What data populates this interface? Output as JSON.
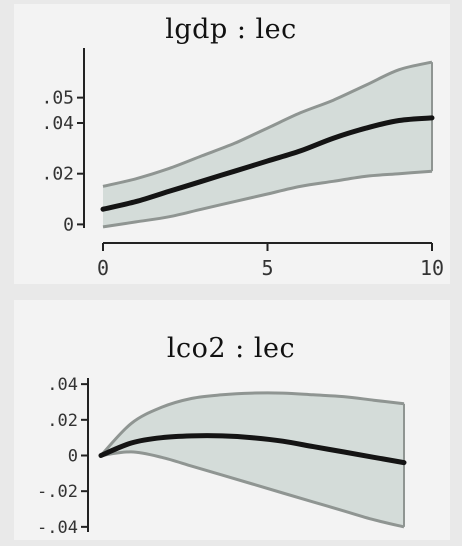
{
  "chart_data": [
    {
      "type": "area",
      "title": "lgdp : lec",
      "xlabel": "",
      "ylabel": "",
      "x": [
        0,
        1,
        2,
        3,
        4,
        5,
        6,
        7,
        8,
        9,
        10
      ],
      "xlim": [
        0,
        10
      ],
      "ylim": [
        -0.003,
        0.068
      ],
      "xticks": [
        0,
        5,
        10
      ],
      "xtick_labels": [
        "0",
        "5",
        "10"
      ],
      "yticks": [
        0,
        0.02,
        0.04,
        0.05
      ],
      "ytick_labels": [
        "0",
        ".02",
        ".04",
        ".05"
      ],
      "grid": false,
      "series": [
        {
          "role": "irf",
          "values": [
            0.006,
            0.009,
            0.013,
            0.017,
            0.021,
            0.025,
            0.029,
            0.034,
            0.038,
            0.041,
            0.042
          ]
        },
        {
          "role": "upper",
          "values": [
            0.015,
            0.018,
            0.022,
            0.027,
            0.032,
            0.038,
            0.044,
            0.049,
            0.055,
            0.061,
            0.064
          ]
        },
        {
          "role": "lower",
          "values": [
            -0.001,
            0.001,
            0.003,
            0.006,
            0.009,
            0.012,
            0.015,
            0.017,
            0.019,
            0.02,
            0.021
          ]
        }
      ],
      "colors": {
        "band": "#d4dcd9",
        "band_edge": "#8f9592",
        "line": "#141414",
        "axis": "#222222"
      }
    },
    {
      "type": "area",
      "title": "lco2 : lec",
      "xlabel": "",
      "ylabel": "",
      "x": [
        0,
        1,
        2,
        3,
        4,
        5,
        6,
        7,
        8,
        9,
        10
      ],
      "xlim": [
        0,
        10
      ],
      "ylim": [
        -0.044,
        0.044
      ],
      "xticks": [],
      "xtick_labels": [],
      "yticks": [
        0.04,
        0.02,
        0,
        -0.02,
        -0.04
      ],
      "ytick_labels": [
        ".04",
        ".02",
        "0",
        "-.02",
        "-.04"
      ],
      "grid": false,
      "series": [
        {
          "role": "irf",
          "values": [
            0.0,
            0.007,
            0.01,
            0.011,
            0.011,
            0.01,
            0.008,
            0.005,
            0.002,
            -0.001,
            -0.004
          ]
        },
        {
          "role": "upper",
          "values": [
            0.0,
            0.018,
            0.027,
            0.032,
            0.034,
            0.035,
            0.035,
            0.034,
            0.033,
            0.031,
            0.029
          ]
        },
        {
          "role": "lower",
          "values": [
            0.0,
            0.002,
            -0.001,
            -0.006,
            -0.011,
            -0.016,
            -0.021,
            -0.026,
            -0.031,
            -0.036,
            -0.04
          ]
        }
      ],
      "colors": {
        "band": "#d4dcd9",
        "band_edge": "#8f9592",
        "line": "#141414",
        "axis": "#222222"
      }
    }
  ]
}
